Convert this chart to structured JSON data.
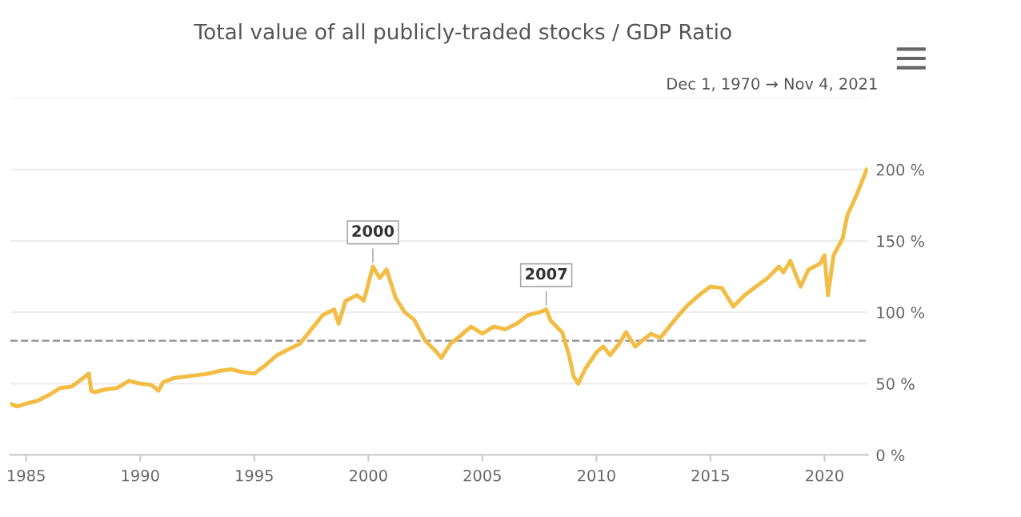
{
  "chart_data": {
    "type": "line",
    "title": "Total value of all publicly-traded stocks / GDP Ratio",
    "subtitle": "Dec 1, 1970 → Nov 4, 2021",
    "series": [
      {
        "color": "#f2bd45",
        "x": [
          1984.3,
          1984.6,
          1985,
          1985.5,
          1986,
          1986.5,
          1987,
          1987.5,
          1987.75,
          1987.85,
          1988,
          1988.5,
          1989,
          1989.5,
          1990,
          1990.5,
          1990.8,
          1991,
          1991.5,
          1992,
          1992.5,
          1993,
          1993.5,
          1994,
          1994.5,
          1995,
          1995.5,
          1996,
          1996.5,
          1997,
          1997.5,
          1998,
          1998.5,
          1998.7,
          1999,
          1999.5,
          1999.8,
          2000.2,
          2000.5,
          2000.8,
          2001.2,
          2001.6,
          2002,
          2002.5,
          2003,
          2003.2,
          2003.6,
          2004,
          2004.5,
          2005,
          2005.5,
          2006,
          2006.5,
          2007,
          2007.5,
          2007.8,
          2008,
          2008.5,
          2008.8,
          2009,
          2009.2,
          2009.5,
          2010,
          2010.3,
          2010.6,
          2011,
          2011.3,
          2011.7,
          2012,
          2012.4,
          2012.8,
          2013,
          2013.5,
          2014,
          2014.5,
          2015,
          2015.5,
          2016,
          2016.5,
          2017,
          2017.5,
          2018,
          2018.2,
          2018.5,
          2018.95,
          2019.3,
          2019.8,
          2020,
          2020.15,
          2020.4,
          2020.8,
          2021,
          2021.4,
          2021.85
        ],
        "values": [
          36,
          34,
          36,
          38,
          42,
          47,
          48,
          54,
          57,
          45,
          44,
          46,
          47,
          52,
          50,
          49,
          45,
          51,
          54,
          55,
          56,
          57,
          59,
          60,
          58,
          57,
          63,
          70,
          74,
          78,
          88,
          98,
          102,
          92,
          108,
          112,
          108,
          132,
          124,
          130,
          110,
          100,
          95,
          80,
          72,
          68,
          78,
          83,
          90,
          85,
          90,
          88,
          92,
          98,
          100,
          102,
          94,
          86,
          70,
          55,
          50,
          60,
          72,
          76,
          70,
          78,
          86,
          76,
          80,
          85,
          82,
          86,
          96,
          105,
          112,
          118,
          117,
          104,
          112,
          118,
          124,
          132,
          128,
          136,
          118,
          130,
          134,
          140,
          112,
          140,
          152,
          168,
          182,
          200
        ]
      }
    ],
    "xlim": [
      1984.3,
      2021.9
    ],
    "xticks": [
      1985,
      1990,
      1995,
      2000,
      2005,
      2010,
      2015,
      2020
    ],
    "ylim": [
      0,
      250
    ],
    "yticks": [
      {
        "value": 0,
        "label": "0 %"
      },
      {
        "value": 50,
        "label": "50 %"
      },
      {
        "value": 100,
        "label": "100 %"
      },
      {
        "value": 150,
        "label": "150 %"
      },
      {
        "value": 200,
        "label": "200 %"
      },
      {
        "value": 250,
        "label": null
      }
    ],
    "ref_lines": [
      {
        "axis": "y",
        "value": 80,
        "label": null,
        "color": "#999999",
        "line_style": "dashed"
      }
    ],
    "annotations": [
      {
        "text": "2000",
        "x": 2000.2,
        "y": 132
      },
      {
        "text": "2007",
        "x": 2007.8,
        "y": 102
      }
    ],
    "grid": "y",
    "legend": false,
    "marker": "none",
    "line_style": "solid"
  }
}
